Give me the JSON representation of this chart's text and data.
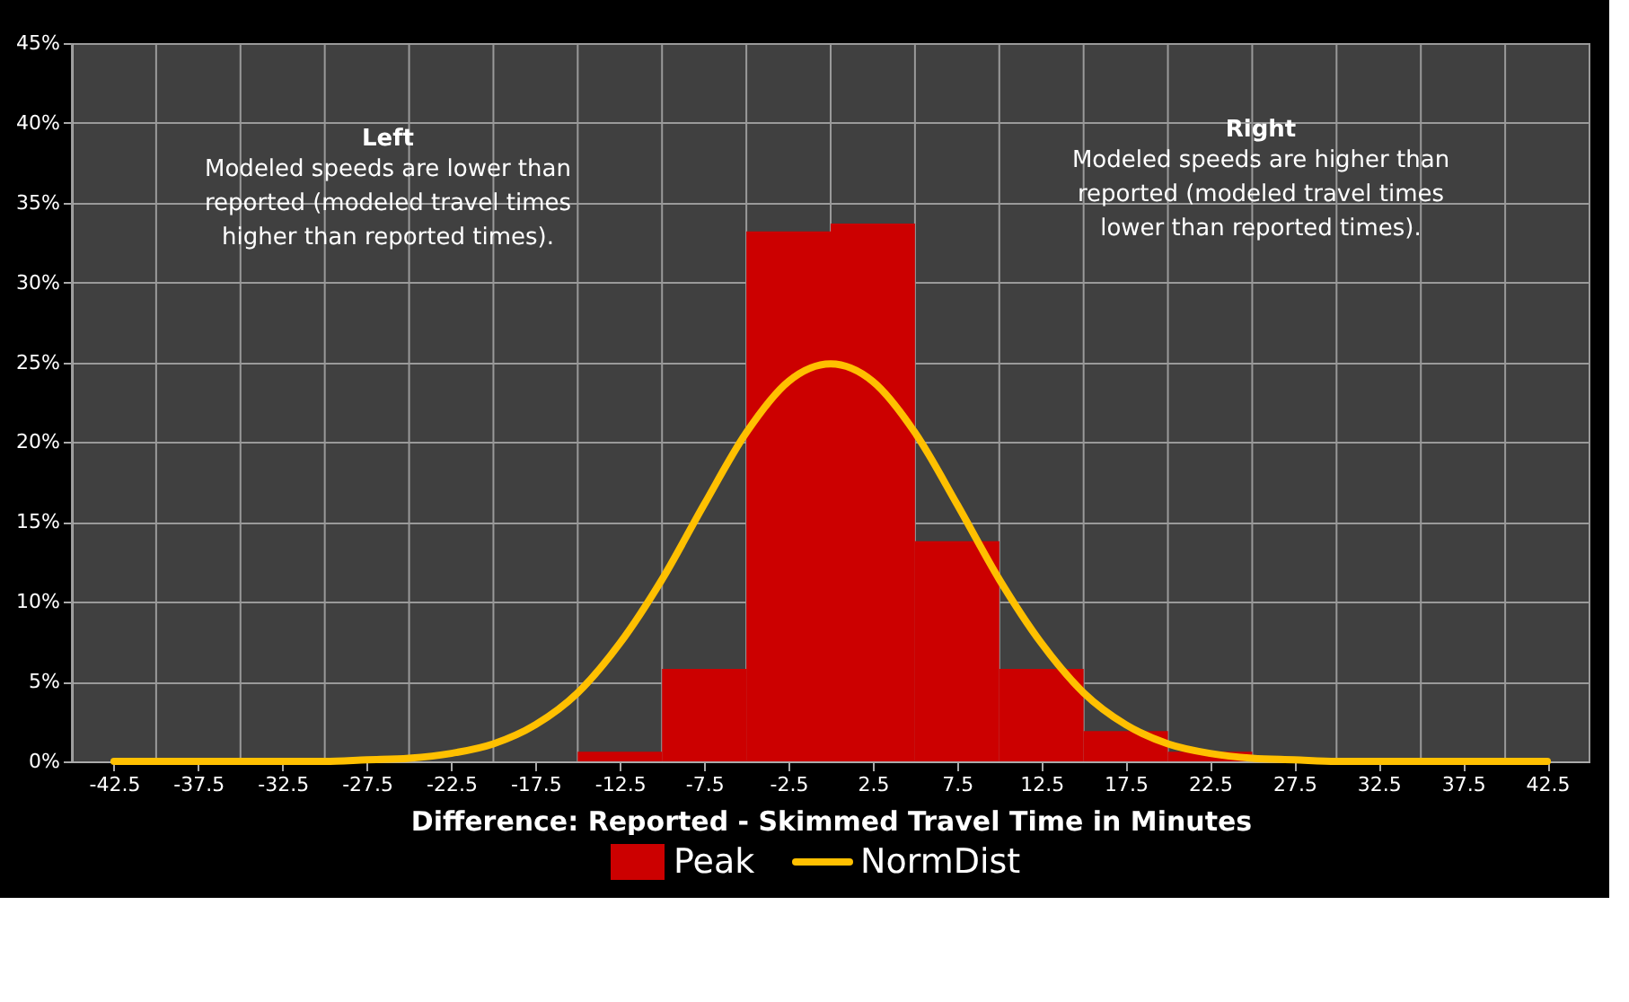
{
  "chart_data": {
    "type": "histogram",
    "xlabel": "Difference:  Reported - Skimmed Travel Time in Minutes",
    "bins": [
      -45,
      -40,
      -35,
      -30,
      -25,
      -20,
      -15,
      -10,
      -5,
      0,
      5,
      10,
      15,
      20,
      25,
      30,
      35,
      40,
      45
    ],
    "series": [
      {
        "name": "Peak",
        "color": "#cc0000",
        "values": [
          0,
          0,
          0,
          0,
          0,
          0,
          0.6,
          5.8,
          33.2,
          33.7,
          13.8,
          5.8,
          1.9,
          0.6,
          0,
          0,
          0,
          0
        ]
      },
      {
        "name": "NormDist",
        "type": "line",
        "color": "#ffc000",
        "x": [
          -42.5,
          -40,
          -37.5,
          -35,
          -32.5,
          -30,
          -27.5,
          -25,
          -22.5,
          -20,
          -17.5,
          -15,
          -12.5,
          -10,
          -7.5,
          -5,
          -2.5,
          0,
          2.5,
          5,
          7.5,
          10,
          12.5,
          15,
          17.5,
          20,
          22.5,
          25,
          27.5,
          30,
          32.5,
          35,
          37.5,
          40,
          42.5
        ],
        "values": [
          0,
          0,
          0,
          0,
          0,
          0,
          0.1,
          0.2,
          0.5,
          1.1,
          2.3,
          4.3,
          7.4,
          11.4,
          16.1,
          20.6,
          23.8,
          24.9,
          23.8,
          20.6,
          16.1,
          11.4,
          7.4,
          4.3,
          2.3,
          1.1,
          0.5,
          0.2,
          0.1,
          0,
          0,
          0,
          0,
          0,
          0
        ]
      }
    ],
    "xlim": [
      -45,
      45
    ],
    "xticks": [
      -42.5,
      -37.5,
      -32.5,
      -27.5,
      -22.5,
      -17.5,
      -12.5,
      -7.5,
      -2.5,
      2.5,
      7.5,
      12.5,
      17.5,
      22.5,
      27.5,
      32.5,
      37.5,
      42.5
    ],
    "ylim": [
      0,
      45
    ],
    "yticks": [
      {
        "value": 0,
        "label": "0%"
      },
      {
        "value": 5,
        "label": "5%"
      },
      {
        "value": 10,
        "label": "10%"
      },
      {
        "value": 15,
        "label": "15%"
      },
      {
        "value": 20,
        "label": "20%"
      },
      {
        "value": 25,
        "label": "25%"
      },
      {
        "value": 30,
        "label": "30%"
      },
      {
        "value": 35,
        "label": "35%"
      },
      {
        "value": 40,
        "label": "40%"
      },
      {
        "value": 45,
        "label": "45%"
      }
    ],
    "grid": true,
    "legend": "bottom",
    "annotations": [
      "Left",
      "Modeled speeds are lower than reported (modeled travel times higher than reported times).",
      "Right",
      "Modeled speeds are higher than reported (modeled travel times lower than reported times)."
    ]
  }
}
